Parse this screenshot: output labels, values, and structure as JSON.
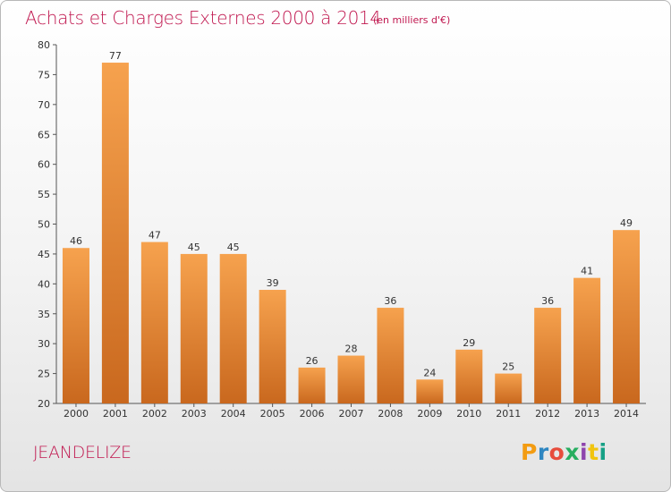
{
  "header": {
    "title": "Achats et Charges Externes 2000 à 2014",
    "subtitle": "(en milliers d'€)"
  },
  "footer": {
    "commune": "JEANDELIZE",
    "logo": {
      "text": "Proxiti",
      "letter_colors": [
        "#f39c12",
        "#2e86c1",
        "#e74c3c",
        "#27ae60",
        "#8e44ad",
        "#f1c40f",
        "#16a085"
      ]
    }
  },
  "colors": {
    "title": "#c0174f",
    "bar_top": "#f6a24e",
    "bar_bottom": "#c9681e",
    "axis": "#555555",
    "grid": "#dddddd"
  },
  "chart_data": {
    "type": "bar",
    "title": "Achats et Charges Externes 2000 à 2014",
    "subtitle": "(en milliers d'€)",
    "categories": [
      "2000",
      "2001",
      "2002",
      "2003",
      "2004",
      "2005",
      "2006",
      "2007",
      "2008",
      "2009",
      "2010",
      "2011",
      "2012",
      "2013",
      "2014"
    ],
    "values": [
      46,
      77,
      47,
      45,
      45,
      39,
      26,
      28,
      36,
      24,
      29,
      25,
      36,
      41,
      49
    ],
    "ylim": [
      20,
      80
    ],
    "yticks": [
      20,
      25,
      30,
      35,
      40,
      45,
      50,
      55,
      60,
      65,
      70,
      75,
      80
    ],
    "grid": false,
    "data_labels": true
  }
}
